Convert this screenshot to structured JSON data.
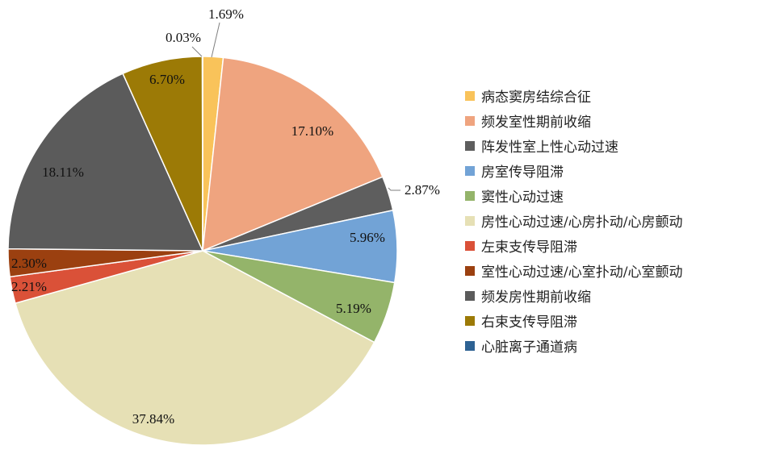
{
  "chart_data": {
    "type": "pie",
    "start_angle_deg": 0,
    "direction": "clockwise",
    "legend_position": "right",
    "slices": [
      {
        "name": "病态窦房结综合征",
        "value": 1.69,
        "label": "1.69%",
        "color": "#F9C35A"
      },
      {
        "name": "频发室性期前收缩",
        "value": 17.1,
        "label": "17.10%",
        "color": "#EFA47F"
      },
      {
        "name": "阵发性室上性心动过速",
        "value": 2.87,
        "label": "2.87%",
        "color": "#5E5E5E"
      },
      {
        "name": "房室传导阻滞",
        "value": 5.96,
        "label": "5.96%",
        "color": "#72A3D6"
      },
      {
        "name": "窦性心动过速",
        "value": 5.19,
        "label": "5.19%",
        "color": "#94B46A"
      },
      {
        "name": "房性心动过速/心房扑动/心房颤动",
        "value": 37.84,
        "label": "37.84%",
        "color": "#E6E0B5"
      },
      {
        "name": "左束支传导阻滞",
        "value": 2.21,
        "label": "2.21%",
        "color": "#DA5138"
      },
      {
        "name": "室性心动过速/心室扑动/心室颤动",
        "value": 2.3,
        "label": "2.30%",
        "color": "#9B4010"
      },
      {
        "name": "频发房性期前收缩",
        "value": 18.11,
        "label": "18.11%",
        "color": "#5B5B5B"
      },
      {
        "name": "右束支传导阻滞",
        "value": 6.7,
        "label": "6.70%",
        "color": "#9C7A06"
      },
      {
        "name": "心脏离子通道病",
        "value": 0.03,
        "label": "0.03%",
        "color": "#2E6293"
      }
    ]
  }
}
